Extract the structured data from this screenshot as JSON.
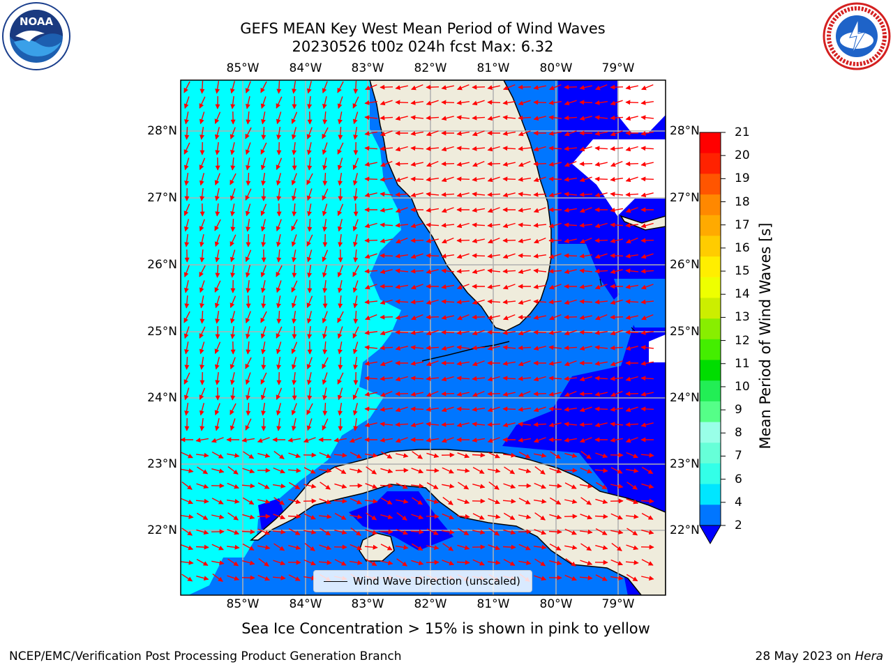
{
  "title": {
    "line1": "GEFS MEAN Key West Mean Period of Wind Waves",
    "line2": "20230526 t00z 024h fcst   Max: 6.32"
  },
  "logos": {
    "left": "noaa-logo",
    "right": "nws-logo"
  },
  "map": {
    "lon_labels": [
      "85°W",
      "84°W",
      "83°W",
      "82°W",
      "81°W",
      "80°W",
      "79°W"
    ],
    "lat_labels": [
      "28°N",
      "27°N",
      "26°N",
      "25°N",
      "24°N",
      "23°N",
      "22°N"
    ],
    "legend_label": "Wind Wave Direction (unscaled)",
    "arrow_color": "#ff0000",
    "land_color": "#efecdc"
  },
  "colorbar": {
    "label": "Mean Period of Wind Waves [s]",
    "ticks": [
      "2",
      "4",
      "6",
      "7",
      "8",
      "9",
      "10",
      "11",
      "12",
      "13",
      "14",
      "15",
      "16",
      "17",
      "18",
      "19",
      "20",
      "21"
    ],
    "colors": [
      "#0076ff",
      "#00e6ff",
      "#33ffe8",
      "#66ffd8",
      "#99ffe8",
      "#55ff88",
      "#22ee55",
      "#00dd00",
      "#44ee00",
      "#88ee00",
      "#ccee00",
      "#eeff00",
      "#ffee00",
      "#ffcc00",
      "#ffaa00",
      "#ff8800",
      "#ff5500",
      "#ff2200",
      "#ff0000"
    ],
    "under_color": "#0000ff"
  },
  "note": "Sea Ice Concentration > 15% is shown in pink to yellow",
  "footer": {
    "left": "NCEP/EMC/Verification Post Processing Product Generation Branch",
    "right_date": "28 May 2023 on ",
    "right_host": "Hera"
  }
}
